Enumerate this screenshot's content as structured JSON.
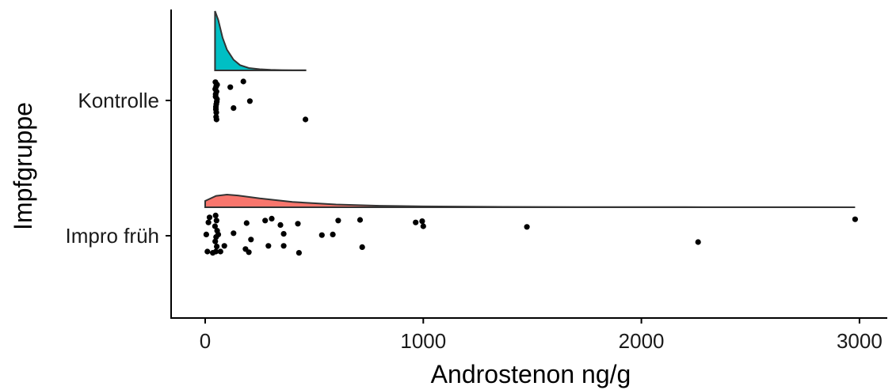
{
  "chart_data": {
    "type": "raincloud",
    "xlabel": "Androstenon ng/g",
    "ylabel": "Impfgruppe",
    "xlim": [
      -120,
      3050
    ],
    "x_ticks": [
      0,
      1000,
      2000,
      3000
    ],
    "grid": false,
    "legend": "none",
    "groups": [
      {
        "name": "Kontrolle",
        "color": "#00BFC4",
        "density": {
          "x": [
            45,
            60,
            80,
            100,
            130,
            160,
            200,
            250,
            300,
            350,
            400,
            460
          ],
          "y": [
            1.0,
            0.85,
            0.55,
            0.35,
            0.18,
            0.09,
            0.04,
            0.02,
            0.01,
            0.005,
            0.003,
            0.002
          ]
        },
        "points": [
          {
            "x": 47,
            "j": 0.29
          },
          {
            "x": 50,
            "j": 0.22
          },
          {
            "x": 52,
            "j": 0.14
          },
          {
            "x": 48,
            "j": 0.06
          },
          {
            "x": 53,
            "j": -0.02
          },
          {
            "x": 49,
            "j": -0.1
          },
          {
            "x": 51,
            "j": -0.19
          },
          {
            "x": 50,
            "j": -0.26
          },
          {
            "x": 55,
            "j": 0.25
          },
          {
            "x": 46,
            "j": 0.18
          },
          {
            "x": 54,
            "j": 0.02
          },
          {
            "x": 49,
            "j": -0.14
          },
          {
            "x": 52,
            "j": -0.3
          },
          {
            "x": 48,
            "j": 0.1
          },
          {
            "x": 51,
            "j": -0.06
          },
          {
            "x": 115,
            "j": 0.21
          },
          {
            "x": 175,
            "j": 0.3
          },
          {
            "x": 130,
            "j": -0.12
          },
          {
            "x": 205,
            "j": -0.01
          },
          {
            "x": 460,
            "j": -0.3
          }
        ]
      },
      {
        "name": "Impro früh",
        "color": "#F8766D",
        "density": {
          "x": [
            0,
            50,
            100,
            150,
            250,
            400,
            600,
            800,
            1000,
            1300,
            1700,
            2200,
            2700,
            2980
          ],
          "y": [
            0.5,
            0.9,
            1.0,
            0.93,
            0.7,
            0.42,
            0.22,
            0.12,
            0.07,
            0.04,
            0.02,
            0.01,
            0.005,
            0.003
          ]
        },
        "points": [
          {
            "x": 20,
            "j": 0.29
          },
          {
            "x": 48,
            "j": 0.32
          },
          {
            "x": 52,
            "j": 0.24
          },
          {
            "x": 45,
            "j": 0.15
          },
          {
            "x": 55,
            "j": 0.08
          },
          {
            "x": 50,
            "j": -0.02
          },
          {
            "x": 46,
            "j": -0.09
          },
          {
            "x": 53,
            "j": -0.17
          },
          {
            "x": 49,
            "j": -0.25
          },
          {
            "x": 60,
            "j": 0.02
          },
          {
            "x": 35,
            "j": -0.27
          },
          {
            "x": 5,
            "j": 0.02
          },
          {
            "x": 10,
            "j": -0.25
          },
          {
            "x": 70,
            "j": -0.25
          },
          {
            "x": 15,
            "j": 0.21
          },
          {
            "x": 88,
            "j": -0.16
          },
          {
            "x": 130,
            "j": 0.04
          },
          {
            "x": 190,
            "j": 0.2
          },
          {
            "x": 200,
            "j": -0.26
          },
          {
            "x": 210,
            "j": -0.06
          },
          {
            "x": 185,
            "j": -0.21
          },
          {
            "x": 275,
            "j": 0.24
          },
          {
            "x": 305,
            "j": 0.27
          },
          {
            "x": 290,
            "j": -0.16
          },
          {
            "x": 345,
            "j": 0.17
          },
          {
            "x": 360,
            "j": 0.03
          },
          {
            "x": 360,
            "j": -0.16
          },
          {
            "x": 430,
            "j": -0.27
          },
          {
            "x": 425,
            "j": 0.19
          },
          {
            "x": 535,
            "j": 0.01
          },
          {
            "x": 585,
            "j": 0.02
          },
          {
            "x": 610,
            "j": 0.24
          },
          {
            "x": 710,
            "j": 0.25
          },
          {
            "x": 720,
            "j": -0.18
          },
          {
            "x": 965,
            "j": 0.21
          },
          {
            "x": 995,
            "j": 0.23
          },
          {
            "x": 1000,
            "j": 0.15
          },
          {
            "x": 1475,
            "j": 0.14
          },
          {
            "x": 2260,
            "j": -0.1
          },
          {
            "x": 2980,
            "j": 0.26
          }
        ]
      }
    ]
  }
}
